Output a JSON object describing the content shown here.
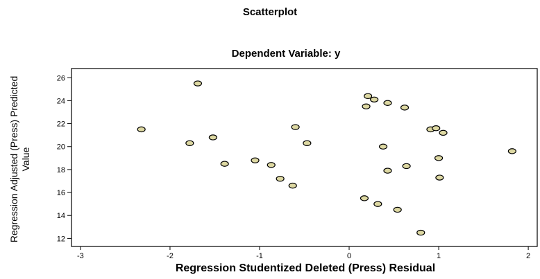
{
  "chart_data": {
    "type": "scatter",
    "title": "Scatterplot",
    "subtitle": "Dependent Variable: y",
    "xlabel": "Regression Studentized Deleted (Press) Residual",
    "ylabel_line1": "Regression Adjusted (Press) Predicted",
    "ylabel_line2": "Value",
    "xlim": [
      -3.1,
      2.1
    ],
    "ylim": [
      11.3,
      26.8
    ],
    "xticks": [
      -3,
      -2,
      -1,
      0,
      1,
      2
    ],
    "yticks": [
      12,
      14,
      16,
      18,
      20,
      22,
      24,
      26
    ],
    "grid": false,
    "marker_fill": "#ddd8a2",
    "points": [
      {
        "x": -2.32,
        "y": 21.5
      },
      {
        "x": -1.78,
        "y": 20.3
      },
      {
        "x": -1.69,
        "y": 25.5
      },
      {
        "x": -1.52,
        "y": 20.8
      },
      {
        "x": -1.39,
        "y": 18.5
      },
      {
        "x": -1.05,
        "y": 18.8
      },
      {
        "x": -0.87,
        "y": 18.4
      },
      {
        "x": -0.77,
        "y": 17.2
      },
      {
        "x": -0.63,
        "y": 16.6
      },
      {
        "x": -0.6,
        "y": 21.7
      },
      {
        "x": -0.47,
        "y": 20.3
      },
      {
        "x": 0.17,
        "y": 15.5
      },
      {
        "x": 0.19,
        "y": 23.5
      },
      {
        "x": 0.21,
        "y": 24.4
      },
      {
        "x": 0.28,
        "y": 24.1
      },
      {
        "x": 0.32,
        "y": 15.0
      },
      {
        "x": 0.38,
        "y": 20.0
      },
      {
        "x": 0.43,
        "y": 17.9
      },
      {
        "x": 0.43,
        "y": 23.8
      },
      {
        "x": 0.54,
        "y": 14.5
      },
      {
        "x": 0.62,
        "y": 23.4
      },
      {
        "x": 0.64,
        "y": 18.3
      },
      {
        "x": 0.8,
        "y": 12.5
      },
      {
        "x": 0.91,
        "y": 21.5
      },
      {
        "x": 0.97,
        "y": 21.6
      },
      {
        "x": 1.0,
        "y": 19.0
      },
      {
        "x": 1.01,
        "y": 17.3
      },
      {
        "x": 1.05,
        "y": 21.2
      },
      {
        "x": 1.82,
        "y": 19.6
      }
    ]
  }
}
